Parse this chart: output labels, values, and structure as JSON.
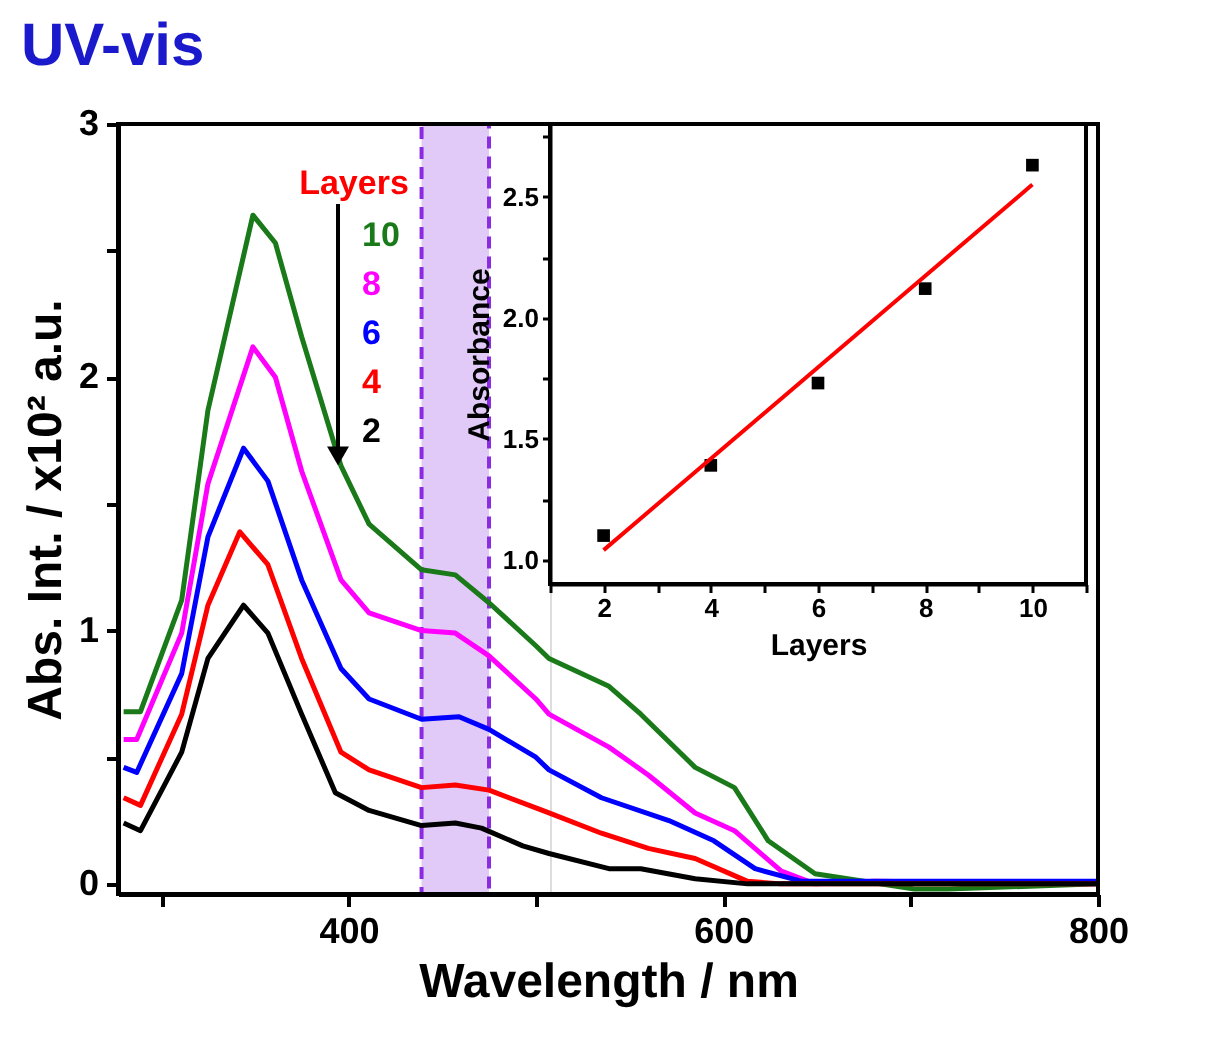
{
  "chart_data": [
    {
      "type": "line",
      "title": "UV-vis",
      "xlabel": "Wavelength / nm",
      "ylabel": "Abs. Int. / x10² a.u.",
      "legend_title": "Layers",
      "legend": "top left",
      "xlim": [
        277,
        800
      ],
      "ylim": [
        -0.04,
        3
      ],
      "xticks": [
        {
          "value": 300,
          "label": null
        },
        400,
        {
          "value": 500,
          "label": null
        },
        600,
        {
          "value": 700,
          "label": null
        },
        800
      ],
      "yticks": [
        0,
        {
          "value": 0.5,
          "label": null
        },
        1,
        {
          "value": 1.5,
          "label": null
        },
        2,
        {
          "value": 2.5,
          "label": null
        },
        3
      ],
      "bands": [
        {
          "axis": "x",
          "from": 439,
          "to": 475,
          "color": "#8a2be2"
        }
      ],
      "series": [
        {
          "name": "10",
          "color": "#1a7a1a",
          "x": [
            280,
            289,
            311,
            325,
            349,
            361,
            375,
            396,
            411,
            439,
            457,
            475,
            500,
            507,
            539,
            556,
            585,
            606,
            624,
            649,
            702,
            720,
            800
          ],
          "values": [
            0.68,
            0.68,
            1.12,
            1.87,
            2.64,
            2.53,
            2.16,
            1.65,
            1.42,
            1.24,
            1.22,
            1.11,
            0.94,
            0.89,
            0.78,
            0.67,
            0.46,
            0.38,
            0.17,
            0.04,
            -0.02,
            -0.02,
            0.0
          ]
        },
        {
          "name": "8",
          "color": "#ff00ff",
          "x": [
            280,
            287,
            311,
            325,
            349,
            361,
            375,
            396,
            411,
            439,
            457,
            475,
            500,
            507,
            539,
            560,
            585,
            606,
            631,
            649,
            681,
            800
          ],
          "values": [
            0.57,
            0.57,
            0.99,
            1.58,
            2.12,
            2.0,
            1.63,
            1.2,
            1.07,
            1.0,
            0.99,
            0.9,
            0.73,
            0.67,
            0.54,
            0.43,
            0.28,
            0.21,
            0.05,
            0.0,
            0.01,
            0.0
          ]
        },
        {
          "name": "6",
          "color": "#0000ff",
          "x": [
            280,
            287,
            311,
            325,
            344,
            357,
            375,
            396,
            411,
            439,
            459,
            475,
            500,
            507,
            535,
            571,
            595,
            617,
            642,
            800
          ],
          "values": [
            0.46,
            0.44,
            0.83,
            1.37,
            1.72,
            1.59,
            1.2,
            0.85,
            0.73,
            0.65,
            0.66,
            0.61,
            0.5,
            0.45,
            0.34,
            0.25,
            0.17,
            0.06,
            0.01,
            0.01
          ]
        },
        {
          "name": "4",
          "color": "#ff0000",
          "x": [
            280,
            289,
            311,
            325,
            342,
            357,
            375,
            396,
            411,
            439,
            457,
            475,
            500,
            507,
            535,
            560,
            585,
            613,
            631,
            800
          ],
          "values": [
            0.34,
            0.31,
            0.67,
            1.1,
            1.39,
            1.26,
            0.89,
            0.52,
            0.45,
            0.38,
            0.39,
            0.37,
            0.3,
            0.28,
            0.2,
            0.14,
            0.1,
            0.01,
            0.0,
            0.0
          ]
        },
        {
          "name": "2",
          "color": "#000000",
          "x": [
            280,
            289,
            311,
            325,
            344,
            357,
            375,
            393,
            411,
            439,
            457,
            471,
            493,
            507,
            539,
            556,
            585,
            613,
            800
          ],
          "values": [
            0.24,
            0.21,
            0.52,
            0.89,
            1.1,
            0.99,
            0.67,
            0.36,
            0.29,
            0.23,
            0.24,
            0.22,
            0.15,
            0.12,
            0.06,
            0.06,
            0.02,
            0.0,
            0.0
          ]
        }
      ]
    },
    {
      "type": "scatter",
      "xlabel": "Layers",
      "ylabel": "Absorbance",
      "xlim": [
        1,
        11
      ],
      "ylim": [
        0.9,
        2.8
      ],
      "xticks": [
        {
          "value": 1,
          "label": null
        },
        2,
        {
          "value": 3,
          "label": null
        },
        4,
        {
          "value": 5,
          "label": null
        },
        6,
        {
          "value": 7,
          "label": null
        },
        8,
        {
          "value": 9,
          "label": null
        },
        10,
        {
          "value": 11,
          "label": null
        }
      ],
      "yticks": [
        {
          "value": 1,
          "label": "1.0"
        },
        {
          "value": 1.25,
          "label": null
        },
        {
          "value": 1.5,
          "label": "1.5"
        },
        {
          "value": 1.75,
          "label": null
        },
        {
          "value": 2,
          "label": "2.0"
        },
        {
          "value": 2.25,
          "label": null
        },
        {
          "value": 2.5,
          "label": "2.5"
        },
        {
          "value": 2.75,
          "label": null
        }
      ],
      "x": [
        2,
        4,
        6,
        8,
        10
      ],
      "series": [
        {
          "color": "#000000",
          "marker": "square",
          "values": [
            1.1,
            1.39,
            1.73,
            2.12,
            2.63
          ]
        },
        {
          "type": "line",
          "color": "#ff0000",
          "x": [
            2,
            10
          ],
          "values": [
            1.04,
            2.55
          ]
        }
      ]
    }
  ]
}
